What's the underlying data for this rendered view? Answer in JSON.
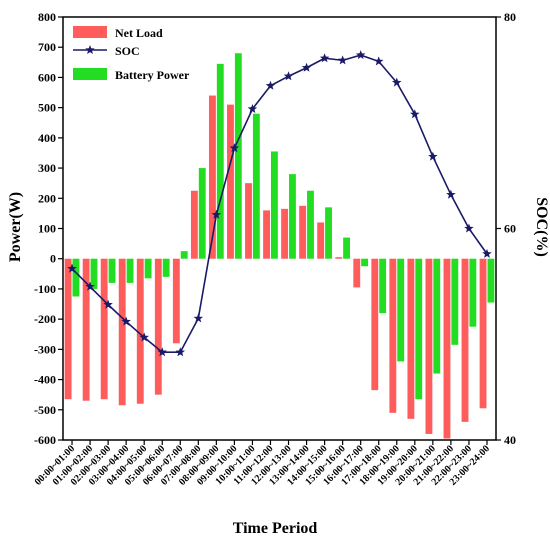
{
  "chart_data": {
    "type": "bar+line",
    "xlabel": "Time Period",
    "ylabel_left": "Power(W)",
    "ylabel_right": "SOC(%)",
    "ylim_left": [
      -600,
      800
    ],
    "yticks_left": [
      -600,
      -500,
      -400,
      -300,
      -200,
      -100,
      0,
      100,
      200,
      300,
      400,
      500,
      600,
      700,
      800
    ],
    "ylim_right": [
      40,
      80
    ],
    "yticks_right": [
      40,
      60,
      80
    ],
    "legend_position": "top-left",
    "categories": [
      "00:00~01:00",
      "01:00~02:00",
      "02:00~03:00",
      "03:00~04:00",
      "04:00~05:00",
      "05:00~06:00",
      "06:00~07:00",
      "07:00~08:00",
      "08:00~09:00",
      "09:00~10:00",
      "10:00~11:00",
      "11:00~12:00",
      "12:00~13:00",
      "13:00~14:00",
      "14:00~15:00",
      "15:00~16:00",
      "16:00~17:00",
      "17:00~18:00",
      "18:00~19:00",
      "19:00~20:00",
      "20:00~21:00",
      "21:00~22:00",
      "22:00~23:00",
      "23:00~24:00"
    ],
    "series": [
      {
        "name": "Net Load",
        "type": "bar",
        "axis": "left",
        "color": "#ff5c5c",
        "values": [
          -465,
          -470,
          -465,
          -485,
          -480,
          -450,
          -280,
          225,
          540,
          510,
          250,
          160,
          165,
          175,
          120,
          5,
          -95,
          -435,
          -510,
          -530,
          -580,
          -595,
          -540,
          -495
        ]
      },
      {
        "name": "Battery Power",
        "type": "bar",
        "axis": "left",
        "color": "#22dd22",
        "values": [
          -125,
          -100,
          -80,
          -80,
          -65,
          -60,
          25,
          300,
          645,
          680,
          480,
          355,
          280,
          225,
          170,
          70,
          -25,
          -180,
          -340,
          -465,
          -380,
          -285,
          -225,
          -145
        ]
      },
      {
        "name": "SOC",
        "type": "line",
        "axis": "right",
        "color": "#1a1a66",
        "marker": "star",
        "values": [
          56.2,
          54.5,
          52.8,
          51.2,
          49.7,
          48.3,
          48.3,
          51.5,
          61.3,
          67.6,
          71.3,
          73.5,
          74.4,
          75.2,
          76.1,
          75.9,
          76.4,
          75.8,
          73.8,
          70.8,
          66.8,
          63.2,
          60.0,
          57.6
        ]
      }
    ]
  }
}
